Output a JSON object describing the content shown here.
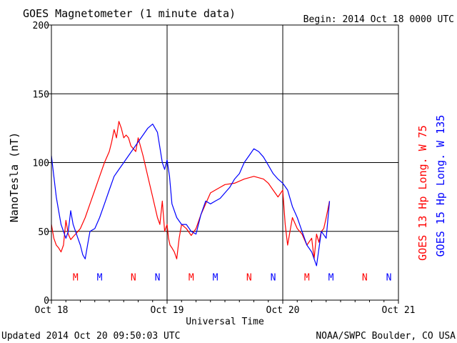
{
  "header": {
    "title": "GOES Magnetometer (1 minute data)",
    "begin": "Begin:  2014 Oct 18 0000 UTC"
  },
  "footer": {
    "updated": "Updated 2014 Oct 20 09:50:03 UTC",
    "credit": "NOAA/SWPC Boulder, CO USA"
  },
  "colors": {
    "red_series": "#ff0000",
    "blue_series": "#0000ff",
    "grid": "#000000"
  },
  "chart_data": {
    "type": "line",
    "xlabel": "Universal Time",
    "ylabel": "NanoTesla (nT)",
    "ylim": [
      0,
      200
    ],
    "yticks": [
      0,
      50,
      100,
      150,
      200
    ],
    "xlim_hours": [
      0,
      72
    ],
    "xticks": [
      {
        "hour": 0,
        "label": "Oct 18"
      },
      {
        "hour": 24,
        "label": "Oct 19"
      },
      {
        "hour": 48,
        "label": "Oct 20"
      },
      {
        "hour": 72,
        "label": "Oct 21"
      }
    ],
    "grid": true,
    "legend_placement": "right",
    "series": [
      {
        "name": "GOES 13 Hp  Long. W 75",
        "color": "#ff0000",
        "x_hours": [
          0,
          0.5,
          1,
          1.5,
          2,
          2.5,
          3,
          3.5,
          4,
          4.5,
          5,
          5.5,
          6,
          7,
          8,
          9,
          10,
          11,
          12,
          12.5,
          13,
          13.5,
          14,
          14.5,
          15,
          15.5,
          16,
          16.5,
          17,
          17.5,
          18,
          19,
          20,
          21,
          22,
          22.5,
          23,
          23.5,
          24,
          24.3,
          24.6,
          25,
          25.5,
          26,
          26.5,
          27,
          28,
          29,
          30,
          31,
          32,
          33,
          34,
          35,
          36,
          38,
          40,
          42,
          44,
          45,
          46,
          47,
          48,
          48.5,
          49,
          49.5,
          50,
          51,
          52,
          53,
          54,
          54.5,
          55,
          55.5,
          56,
          56.5,
          57,
          57.7
        ],
        "values": [
          55,
          45,
          40,
          38,
          35,
          40,
          58,
          48,
          44,
          46,
          48,
          50,
          52,
          60,
          70,
          80,
          90,
          100,
          108,
          115,
          124,
          118,
          130,
          125,
          118,
          120,
          118,
          112,
          110,
          108,
          118,
          105,
          90,
          75,
          60,
          55,
          72,
          50,
          55,
          45,
          40,
          38,
          35,
          30,
          45,
          55,
          52,
          47,
          52,
          62,
          70,
          78,
          80,
          82,
          84,
          85,
          88,
          90,
          88,
          85,
          80,
          75,
          80,
          55,
          40,
          50,
          60,
          52,
          48,
          40,
          45,
          30,
          48,
          42,
          50,
          52,
          60,
          72
        ]
      },
      {
        "name": "GOES 15 Hp  Long. W 135",
        "color": "#0000ff",
        "x_hours": [
          0,
          0.5,
          1,
          1.5,
          2,
          2.5,
          3,
          3.5,
          4,
          4.5,
          5,
          5.5,
          6,
          6.5,
          7,
          7.5,
          8,
          9,
          10,
          11,
          12,
          13,
          14,
          15,
          16,
          17,
          18,
          19,
          20,
          21,
          22,
          23,
          23.5,
          24,
          24.5,
          25,
          26,
          27,
          28,
          29,
          30,
          31,
          32,
          33,
          34,
          35,
          36,
          37,
          38,
          39,
          40,
          41,
          42,
          43,
          44,
          45,
          46,
          47,
          48,
          49,
          50,
          51,
          52,
          53,
          54,
          55,
          56,
          57,
          57.7
        ],
        "values": [
          105,
          90,
          75,
          65,
          55,
          50,
          45,
          50,
          65,
          55,
          50,
          45,
          40,
          33,
          30,
          40,
          50,
          52,
          60,
          70,
          80,
          90,
          95,
          100,
          105,
          110,
          115,
          120,
          125,
          128,
          122,
          100,
          95,
          102,
          90,
          70,
          60,
          55,
          55,
          50,
          48,
          62,
          72,
          70,
          72,
          74,
          78,
          82,
          88,
          92,
          100,
          105,
          110,
          108,
          104,
          98,
          92,
          88,
          85,
          80,
          68,
          60,
          50,
          40,
          35,
          25,
          50,
          45,
          72
        ]
      }
    ],
    "markers": [
      {
        "label": "M",
        "hour": 5,
        "color": "#ff0000"
      },
      {
        "label": "M",
        "hour": 10,
        "color": "#0000ff"
      },
      {
        "label": "N",
        "hour": 17,
        "color": "#ff0000"
      },
      {
        "label": "N",
        "hour": 22,
        "color": "#0000ff"
      },
      {
        "label": "M",
        "hour": 29,
        "color": "#ff0000"
      },
      {
        "label": "M",
        "hour": 34,
        "color": "#0000ff"
      },
      {
        "label": "N",
        "hour": 41,
        "color": "#ff0000"
      },
      {
        "label": "N",
        "hour": 46,
        "color": "#0000ff"
      },
      {
        "label": "M",
        "hour": 53,
        "color": "#ff0000"
      },
      {
        "label": "M",
        "hour": 58,
        "color": "#0000ff"
      },
      {
        "label": "N",
        "hour": 65,
        "color": "#ff0000"
      },
      {
        "label": "N",
        "hour": 70,
        "color": "#0000ff"
      }
    ],
    "marker_level": 17
  }
}
